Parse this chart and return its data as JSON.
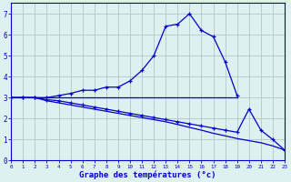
{
  "x_values": [
    0,
    1,
    2,
    3,
    4,
    5,
    6,
    7,
    8,
    9,
    10,
    11,
    12,
    13,
    14,
    15,
    16,
    17,
    18,
    19,
    20,
    21,
    22,
    23
  ],
  "line1_x": [
    0,
    1,
    2,
    3,
    4,
    5,
    6,
    7,
    8,
    9,
    10,
    11,
    12,
    13,
    14,
    15,
    16,
    17,
    18,
    19
  ],
  "line1_y": [
    3.0,
    3.0,
    3.0,
    3.0,
    3.1,
    3.2,
    3.35,
    3.35,
    3.5,
    3.5,
    3.8,
    4.3,
    5.0,
    6.4,
    6.5,
    7.0,
    6.2,
    5.9,
    4.7,
    3.1
  ],
  "line2_x": [
    0,
    19
  ],
  "line2_y": [
    3.0,
    3.0
  ],
  "line3_x": [
    0,
    1,
    2,
    3,
    4,
    5,
    6,
    7,
    8,
    9,
    10,
    11,
    12,
    13,
    14,
    15,
    16,
    17,
    18,
    19,
    20,
    21,
    22,
    23
  ],
  "line3_y": [
    3.0,
    3.0,
    3.0,
    2.9,
    2.85,
    2.75,
    2.65,
    2.55,
    2.45,
    2.35,
    2.25,
    2.15,
    2.05,
    1.95,
    1.85,
    1.75,
    1.65,
    1.55,
    1.45,
    1.35,
    2.45,
    1.45,
    1.0,
    0.5
  ],
  "line4_x": [
    0,
    1,
    2,
    3,
    4,
    5,
    6,
    7,
    8,
    9,
    10,
    11,
    12,
    13,
    14,
    15,
    16,
    17,
    18,
    19,
    20,
    21,
    22,
    23
  ],
  "line4_y": [
    3.0,
    3.0,
    3.0,
    2.85,
    2.75,
    2.65,
    2.55,
    2.45,
    2.35,
    2.25,
    2.15,
    2.05,
    1.95,
    1.85,
    1.72,
    1.58,
    1.45,
    1.3,
    1.18,
    1.05,
    0.95,
    0.85,
    0.7,
    0.5
  ],
  "color": "#0000cc",
  "bg_color": "#dff0f0",
  "grid_color": "#b0c8c8",
  "xlabel": "Graphe des températures (°c)",
  "ylim": [
    0,
    7.5
  ],
  "xlim": [
    0,
    23
  ],
  "yticks": [
    0,
    1,
    2,
    3,
    4,
    5,
    6,
    7
  ],
  "xticks": [
    0,
    1,
    2,
    3,
    4,
    5,
    6,
    7,
    8,
    9,
    10,
    11,
    12,
    13,
    14,
    15,
    16,
    17,
    18,
    19,
    20,
    21,
    22,
    23
  ]
}
